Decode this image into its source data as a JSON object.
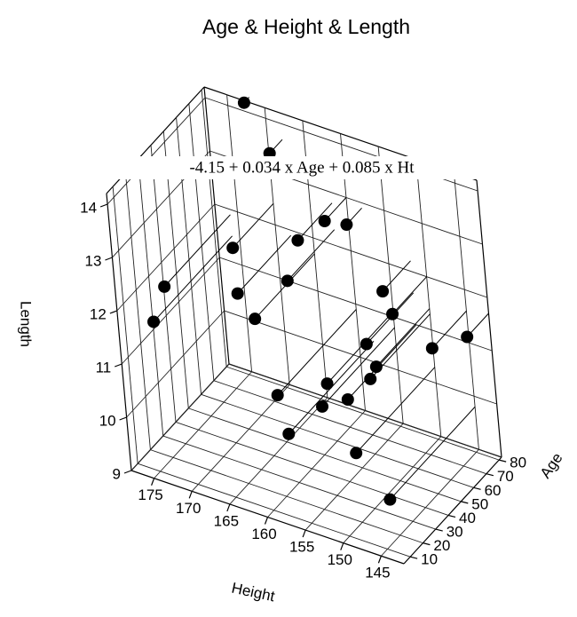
{
  "chart_data": {
    "type": "scatter3d",
    "title": "Age & Height & Length",
    "annotation": "-4.15 + 0.034 x Age + 0.085 x Ht",
    "xlabel": "Height",
    "ylabel": "Age",
    "zlabel": "Length",
    "x": [
      172,
      168,
      160,
      158,
      162,
      170,
      162,
      152,
      150,
      168,
      176,
      165,
      176,
      150,
      145,
      142,
      150,
      155,
      152,
      160,
      155,
      158,
      150,
      145,
      152
    ],
    "y": [
      78,
      72,
      65,
      70,
      55,
      50,
      45,
      60,
      55,
      40,
      30,
      35,
      20,
      40,
      55,
      65,
      35,
      30,
      28,
      20,
      25,
      15,
      20,
      15,
      45
    ],
    "z": [
      14.3,
      13.7,
      13.0,
      12.9,
      12.8,
      12.4,
      12.3,
      12.2,
      12.0,
      11.9,
      11.9,
      11.7,
      11.5,
      11.4,
      11.6,
      11.7,
      11.3,
      11.1,
      11.0,
      10.9,
      10.8,
      10.4,
      10.3,
      9.8,
      11.6
    ],
    "xlim": [
      178,
      142
    ],
    "ylim": [
      5,
      82
    ],
    "zlim": [
      9,
      14.2
    ],
    "xticks": [
      175,
      170,
      165,
      160,
      155,
      150,
      145
    ],
    "yticks": [
      10,
      20,
      30,
      40,
      50,
      60,
      70,
      80
    ],
    "zticks": [
      9,
      10,
      11,
      12,
      13,
      14
    ],
    "color": "#000000",
    "grid": true
  }
}
